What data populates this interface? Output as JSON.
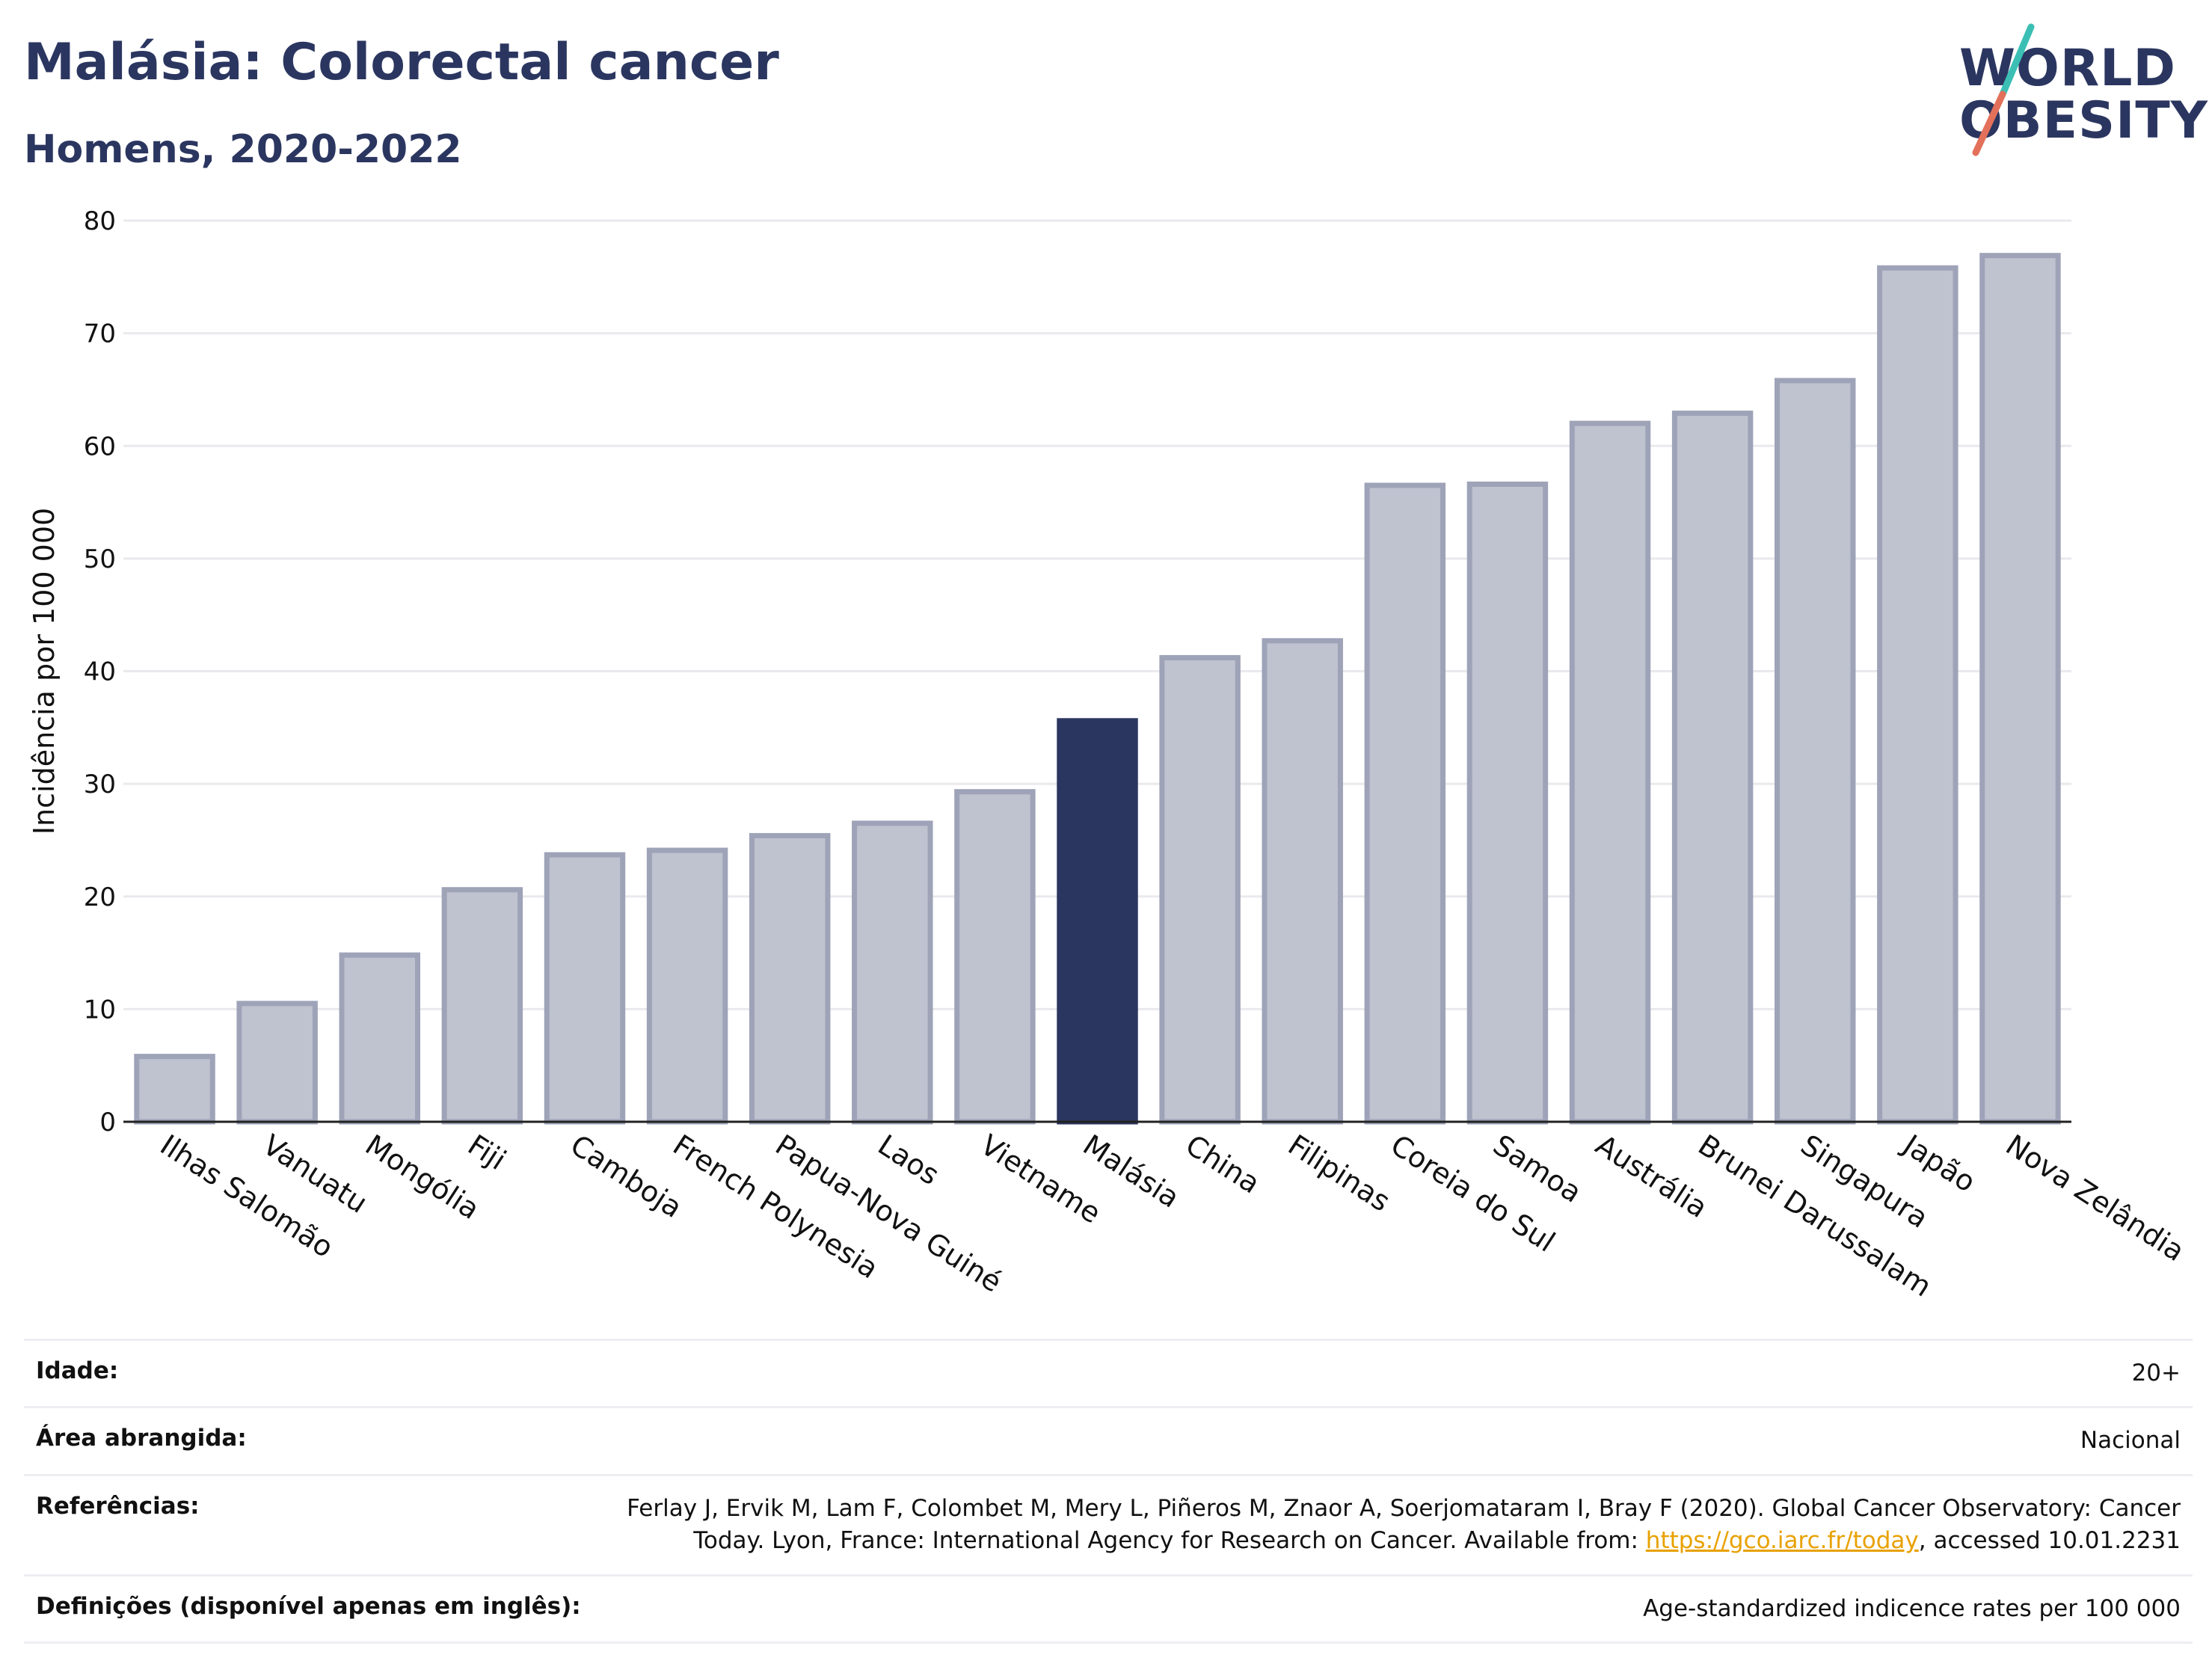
{
  "header": {
    "title": "Malásia: Colorectal cancer",
    "subtitle": "Homens, 2020-2022"
  },
  "logo": {
    "line1": "WORLD",
    "line2": "OBESITY",
    "text_color": "#2b3660",
    "slash_colors": [
      "#3bbfb4",
      "#e3705a"
    ]
  },
  "chart_data": {
    "type": "bar",
    "title": "Malásia: Colorectal cancer",
    "subtitle": "Homens, 2020-2022",
    "ylabel": "Incidência por 100 000",
    "xlabel": "",
    "ylim": [
      0,
      80
    ],
    "yticks": [
      0,
      10,
      20,
      30,
      40,
      50,
      60,
      70,
      80
    ],
    "grid": true,
    "highlight": "Malásia",
    "colors": {
      "bar": "#bfc2cf",
      "bar_border": "#9ea3b8",
      "highlight": "#2b3660"
    },
    "categories": [
      "Ilhas Salomão",
      "Vanuatu",
      "Mongólia",
      "Fiji",
      "Camboja",
      "French Polynesia",
      "Papua-Nova Guiné",
      "Laos",
      "Vietname",
      "Malásia",
      "China",
      "Filipinas",
      "Coreia do Sul",
      "Samoa",
      "Austrália",
      "Brunei Darussalam",
      "Singapura",
      "Japão",
      "Nova Zelândia"
    ],
    "values": [
      5.8,
      10.5,
      14.8,
      20.6,
      23.7,
      24.1,
      25.4,
      26.5,
      29.3,
      35.6,
      41.2,
      42.7,
      56.5,
      56.6,
      62.0,
      62.9,
      65.8,
      75.8,
      76.9
    ]
  },
  "meta": {
    "age_label": "Idade:",
    "age_value": "20+",
    "area_label": "Área abrangida:",
    "area_value": "Nacional",
    "refs_label": "Referências:",
    "refs_text": "Ferlay J, Ervik M, Lam F, Colombet M, Mery L, Piñeros M, Znaor A, Soerjomataram I, Bray F (2020). Global Cancer Observatory: Cancer Today. Lyon, France: International Agency for Research on Cancer. Available from: ",
    "refs_link": "https://gco.iarc.fr/today",
    "refs_suffix": ", accessed 10.01.2231",
    "defs_label": "Definições (disponível apenas em inglês):",
    "defs_value": "Age-standardized indicence rates per 100 000"
  }
}
